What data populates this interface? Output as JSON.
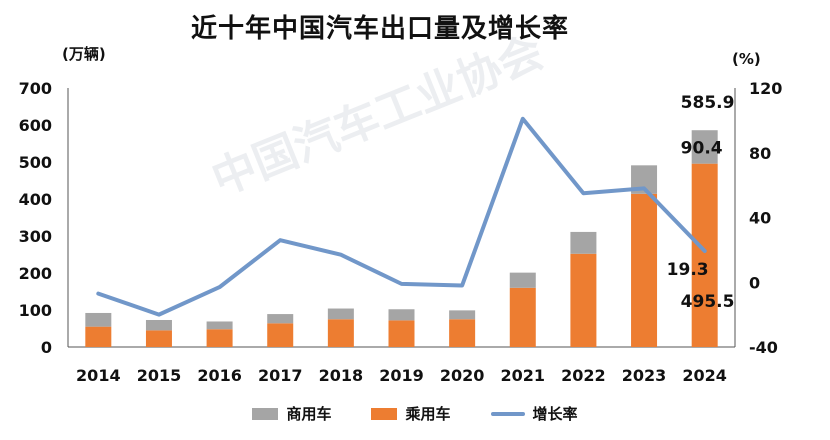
{
  "title": "近十年中国汽车出口量及增长率",
  "left_unit": "(万辆)",
  "right_unit": "(%)",
  "colors": {
    "commercial": "#a5a5a5",
    "passenger": "#ed7d31",
    "growth": "#7197c9"
  },
  "legend": {
    "commercial": "商用车",
    "passenger": "乘用车",
    "growth": "增长率"
  },
  "watermark": "中国汽车工业协会",
  "chart_data": {
    "type": "bar",
    "stacked": true,
    "categories": [
      "2014",
      "2015",
      "2016",
      "2017",
      "2018",
      "2019",
      "2020",
      "2021",
      "2022",
      "2023",
      "2024"
    ],
    "series": [
      {
        "name": "乘用车",
        "type": "bar",
        "axis": "left",
        "values": [
          55,
          45,
          48,
          64,
          75,
          72,
          75,
          160,
          252,
          414,
          495.5
        ]
      },
      {
        "name": "商用车",
        "type": "bar",
        "axis": "left",
        "values": [
          37,
          28,
          21,
          25,
          29,
          30,
          24,
          41,
          59,
          77,
          90.4
        ]
      },
      {
        "name": "增长率",
        "type": "line",
        "axis": "right",
        "values": [
          -7,
          -20,
          -3,
          26,
          17,
          -1,
          -2,
          101,
          55,
          58,
          19.3
        ]
      }
    ],
    "left_axis": {
      "ylim": [
        0,
        700
      ],
      "ticks": [
        0,
        100,
        200,
        300,
        400,
        500,
        600,
        700
      ]
    },
    "right_axis": {
      "ylim": [
        -40,
        120
      ],
      "ticks": [
        -40,
        0,
        40,
        80,
        120
      ]
    },
    "annotations": {
      "total_2024": "585.9",
      "commercial_2024": "90.4",
      "growth_2024": "19.3",
      "passenger_2024": "495.5"
    },
    "legend_position": "bottom"
  }
}
